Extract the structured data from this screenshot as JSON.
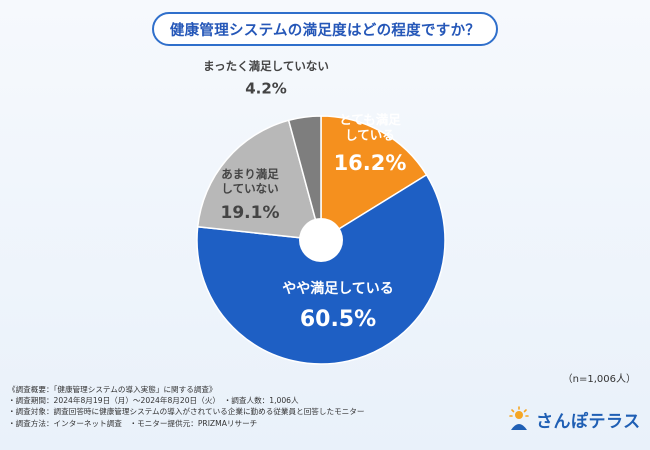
{
  "header": {
    "title": "健康管理システムの満足度はどの程度ですか？"
  },
  "chart_data": {
    "type": "pie",
    "title": "健康管理システムの満足度はどの程度ですか？",
    "slices": [
      {
        "label_lines": [
          "とても満足",
          "している"
        ],
        "value": 16.2,
        "value_text": "16.2%",
        "color": "#f5901e",
        "text_color": "#ffffff"
      },
      {
        "label_lines": [
          "やや満足している"
        ],
        "value": 60.5,
        "value_text": "60.5%",
        "color": "#1e5fc4",
        "text_color": "#ffffff"
      },
      {
        "label_lines": [
          "あまり満足",
          "していない"
        ],
        "value": 19.1,
        "value_text": "19.1%",
        "color": "#b8b8b8",
        "text_color": "#444444"
      },
      {
        "label_lines": [
          "まったく満足していない"
        ],
        "value": 4.2,
        "value_text": "4.2%",
        "color": "#7e7e7e",
        "text_color": "#444444"
      }
    ]
  },
  "sample": {
    "n_label": "（n=1,006人）"
  },
  "notes": {
    "lines": [
      "《調査概要：「健康管理システムの導入実態」に関する調査》",
      "・調査期間：2024年8月19日（月）〜2024年8月20日（火）　・調査人数：1,006人",
      "・調査対象：調査回答時に健康管理システムの導入がされている企業に勤める従業員と回答したモニター",
      "・調査方法：インターネット調査　・モニター提供元：PRIZMAリサーチ"
    ]
  },
  "logo": {
    "text": "さんぽテラス",
    "icon": "sun-person-icon"
  }
}
